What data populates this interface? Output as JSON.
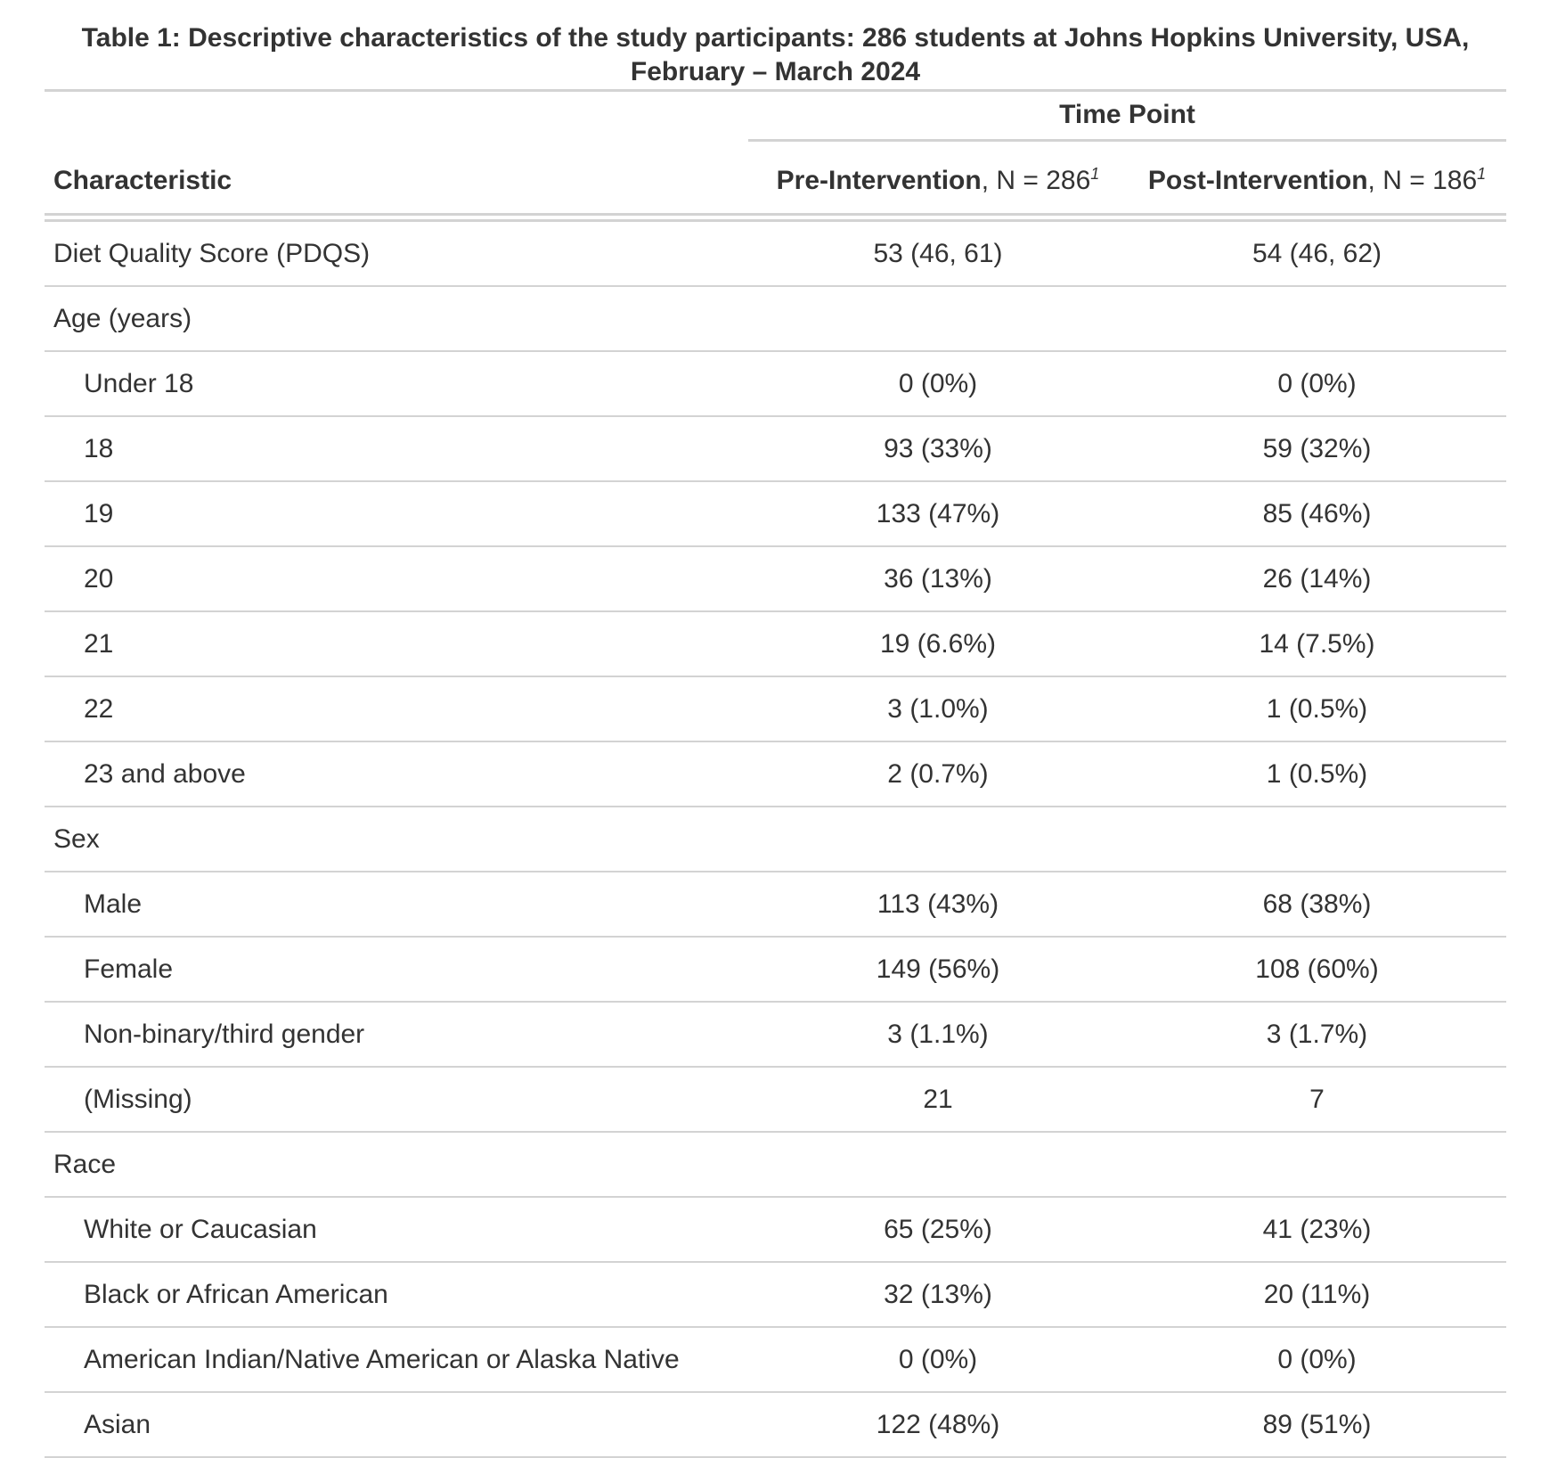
{
  "title": "Table 1: Descriptive characteristics of the study participants: 286 students at Johns Hopkins University, USA, February – March 2024",
  "spanner": "Time Point",
  "columns": {
    "characteristic": "Characteristic",
    "pre": {
      "name": "Pre-Intervention",
      "n": ", N = 286",
      "footnote": "1"
    },
    "post": {
      "name": "Post-Intervention",
      "n": ", N = 186",
      "footnote": "1"
    }
  },
  "rows": [
    {
      "label": "Diet Quality Score (PDQS)",
      "indent": false,
      "pre": "53 (46, 61)",
      "post": "54 (46, 62)"
    },
    {
      "label": "Age (years)",
      "indent": false,
      "pre": "",
      "post": ""
    },
    {
      "label": "Under 18",
      "indent": true,
      "pre": "0 (0%)",
      "post": "0 (0%)"
    },
    {
      "label": "18",
      "indent": true,
      "pre": "93 (33%)",
      "post": "59 (32%)"
    },
    {
      "label": "19",
      "indent": true,
      "pre": "133 (47%)",
      "post": "85 (46%)"
    },
    {
      "label": "20",
      "indent": true,
      "pre": "36 (13%)",
      "post": "26 (14%)"
    },
    {
      "label": "21",
      "indent": true,
      "pre": "19 (6.6%)",
      "post": "14 (7.5%)"
    },
    {
      "label": "22",
      "indent": true,
      "pre": "3 (1.0%)",
      "post": "1 (0.5%)"
    },
    {
      "label": "23 and above",
      "indent": true,
      "pre": "2 (0.7%)",
      "post": "1 (0.5%)"
    },
    {
      "label": "Sex",
      "indent": false,
      "pre": "",
      "post": ""
    },
    {
      "label": "Male",
      "indent": true,
      "pre": "113 (43%)",
      "post": "68 (38%)"
    },
    {
      "label": "Female",
      "indent": true,
      "pre": "149 (56%)",
      "post": "108 (60%)"
    },
    {
      "label": "Non-binary/third gender",
      "indent": true,
      "pre": "3 (1.1%)",
      "post": "3 (1.7%)"
    },
    {
      "label": "(Missing)",
      "indent": true,
      "pre": "21",
      "post": "7"
    },
    {
      "label": "Race",
      "indent": false,
      "pre": "",
      "post": ""
    },
    {
      "label": "White or Caucasian",
      "indent": true,
      "pre": "65 (25%)",
      "post": "41 (23%)"
    },
    {
      "label": "Black or African American",
      "indent": true,
      "pre": "32 (13%)",
      "post": "20 (11%)"
    },
    {
      "label": "American Indian/Native American or Alaska Native",
      "indent": true,
      "pre": "0 (0%)",
      "post": "0 (0%)"
    },
    {
      "label": "Asian",
      "indent": true,
      "pre": "122 (48%)",
      "post": "89 (51%)"
    }
  ]
}
